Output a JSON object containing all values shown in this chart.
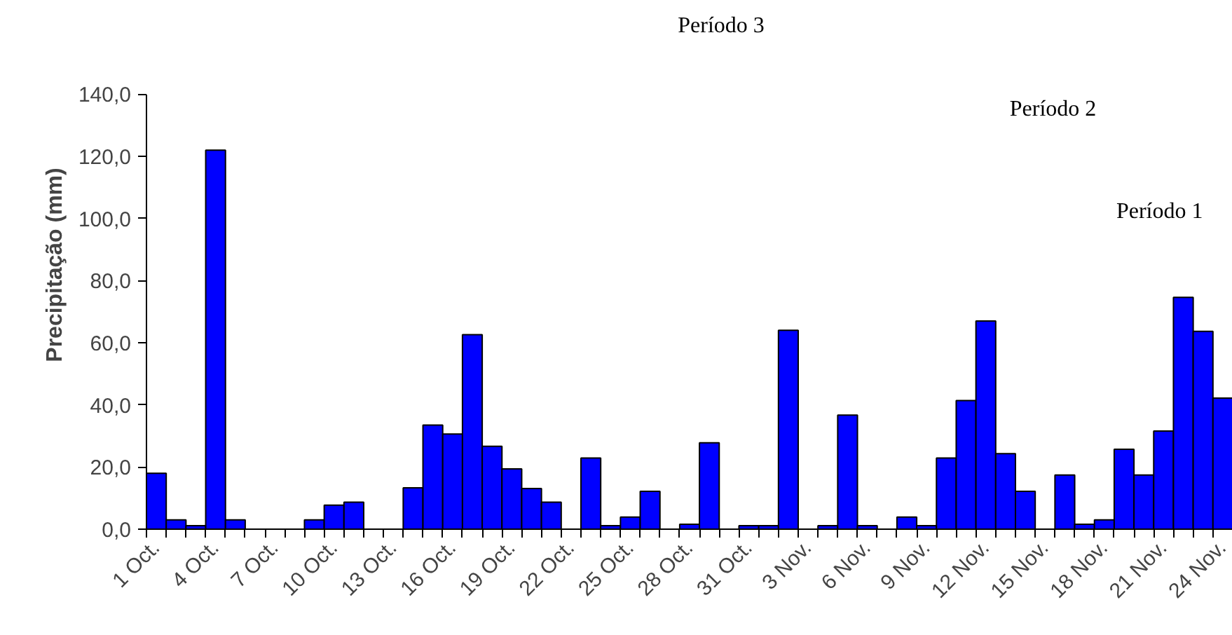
{
  "chart_data": {
    "type": "bar",
    "ylabel": "Precipitação (mm)",
    "categories": [
      "1 Oct.",
      null,
      null,
      "4 Oct.",
      null,
      null,
      "7 Oct.",
      null,
      null,
      "10 Oct.",
      null,
      null,
      "13 Oct.",
      null,
      null,
      "16 Oct.",
      null,
      null,
      "19 Oct.",
      null,
      null,
      "22 Oct.",
      null,
      null,
      "25 Oct.",
      null,
      null,
      "28 Oct.",
      null,
      null,
      "31 Oct.",
      null,
      null,
      "3 Nov.",
      null,
      null,
      "6 Nov.",
      null,
      null,
      "9 Nov.",
      null,
      null,
      "12 Nov.",
      null,
      null,
      "15 Nov.",
      null,
      null,
      "18 Nov.",
      null,
      null,
      "21 Nov.",
      null,
      null,
      "24 Nov."
    ],
    "values": [
      18.0,
      3.0,
      1.1,
      122.0,
      3.0,
      null,
      null,
      null,
      3.0,
      7.7,
      8.7,
      null,
      null,
      13.3,
      33.5,
      30.6,
      62.6,
      26.7,
      19.4,
      13.1,
      8.7,
      null,
      22.9,
      1.1,
      3.9,
      12.2,
      null,
      1.6,
      27.8,
      null,
      1.1,
      1.1,
      64.0,
      null,
      1.1,
      36.7,
      1.1,
      null,
      3.9,
      1.1,
      22.9,
      41.4,
      67.0,
      24.3,
      12.2,
      null,
      17.4,
      1.6,
      3.0,
      25.7,
      17.4,
      31.6,
      74.6,
      63.7,
      42.2
    ],
    "color": "#0000ff",
    "ylim": [
      0,
      140
    ],
    "yticks": [
      {
        "value": 0,
        "label": "0,0"
      },
      {
        "value": 20,
        "label": "20,0"
      },
      {
        "value": 40,
        "label": "40,0"
      },
      {
        "value": 60,
        "label": "60,0"
      },
      {
        "value": 80,
        "label": "80,0"
      },
      {
        "value": 100,
        "label": "100,0"
      },
      {
        "value": 120,
        "label": "120,0"
      },
      {
        "value": 140,
        "label": "140,0"
      }
    ],
    "grid": false,
    "annotations": [
      "Período 3",
      "Período 2",
      "Período 1"
    ]
  }
}
